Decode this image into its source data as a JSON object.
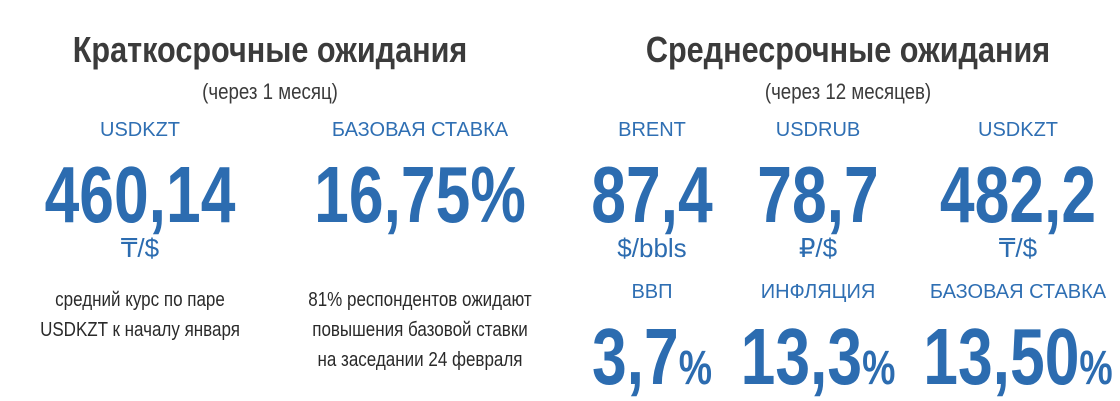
{
  "left": {
    "title": "Краткосрочные ожидания",
    "subtitle": "(через 1 месяц)",
    "items": [
      {
        "label": "USDKZT",
        "value": "460,14",
        "unit": "₸/$",
        "note": [
          "средний курс по паре",
          "USDKZT к началу января"
        ]
      },
      {
        "label": "БАЗОВАЯ СТАВКА",
        "value": "16,75%",
        "note": [
          "81% респондентов ожидают",
          "повышения базовой ставки",
          "на заседании 24 февраля"
        ]
      }
    ]
  },
  "right": {
    "title": "Среднесрочные ожидания",
    "subtitle": "(через 12 месяцев)",
    "items": [
      {
        "label": "BRENT",
        "value": "87,4",
        "unit": "$/bbls"
      },
      {
        "label": "USDRUB",
        "value": "78,7",
        "unit": "₽/$"
      },
      {
        "label": "USDKZT",
        "value": "482,2",
        "unit": "₸/$"
      },
      {
        "label": "ВВП",
        "value": "3,7",
        "suffix": "%"
      },
      {
        "label": "ИНФЛЯЦИЯ",
        "value": "13,3",
        "suffix": "%"
      },
      {
        "label": "БАЗОВАЯ СТАВКА",
        "value": "13,50",
        "suffix": "%"
      }
    ]
  }
}
